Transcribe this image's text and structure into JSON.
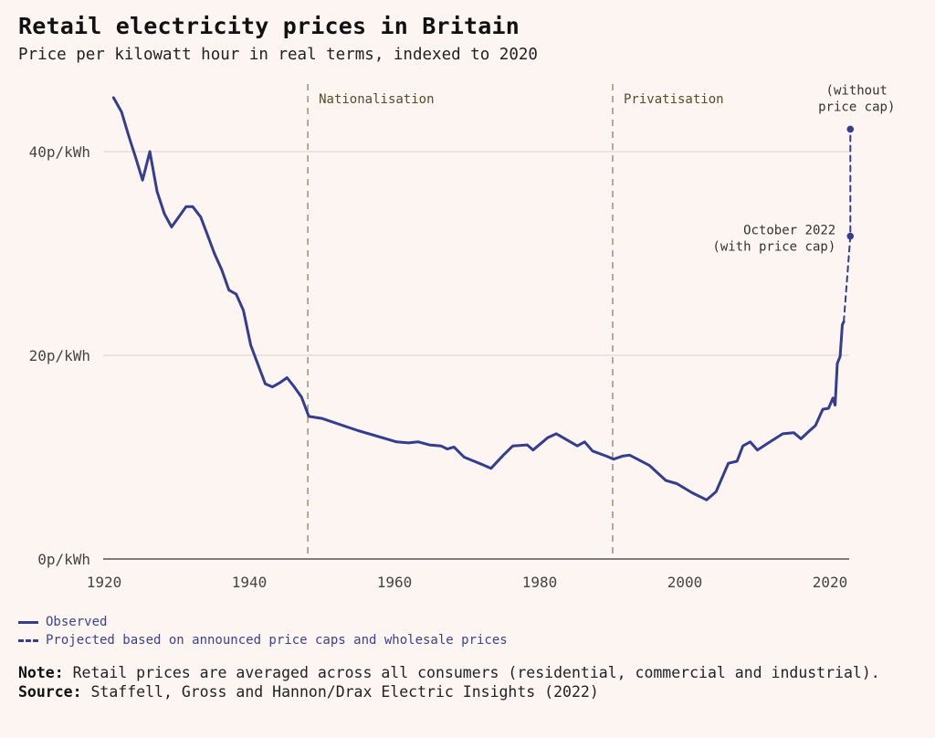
{
  "header": {
    "title": "Retail electricity prices in Britain",
    "subtitle": "Price per kilowatt hour in real terms, indexed to 2020"
  },
  "chart_data": {
    "type": "line",
    "title": "Retail electricity prices in Britain",
    "subtitle": "Price per kilowatt hour in real terms, indexed to 2020",
    "xlabel": "",
    "ylabel": "",
    "xlim": [
      1920,
      2023
    ],
    "ylim": [
      0,
      45
    ],
    "x_ticks": [
      1920,
      1940,
      1960,
      1980,
      2000,
      2020
    ],
    "x_tick_labels": [
      "1920",
      "1940",
      "1960",
      "1980",
      "2000",
      "2020"
    ],
    "y_ticks": [
      0,
      20,
      40
    ],
    "y_tick_labels": [
      "0p/kWh",
      "20p/kWh",
      "40p/kWh"
    ],
    "grid": "horizontal",
    "colors": {
      "line": "#343d8e",
      "event_line": "#8f7f62",
      "grid": "#e4dedb",
      "axis": "#555555",
      "background": "#fdf5f2"
    },
    "series": [
      {
        "name": "Observed",
        "style": "solid",
        "x": [
          1921.3,
          1922.4,
          1923.5,
          1924.4,
          1925.3,
          1926.3,
          1927.3,
          1928.3,
          1929.3,
          1930.3,
          1931.3,
          1932.2,
          1933.3,
          1934.2,
          1935.2,
          1936.2,
          1937.2,
          1938.2,
          1939.2,
          1940.2,
          1941.2,
          1942.2,
          1943.2,
          1944.2,
          1945.2,
          1946.2,
          1947.2,
          1948.2,
          1950.0,
          1955.0,
          1960.3,
          1961.9,
          1963.3,
          1964.8,
          1966.4,
          1967.3,
          1968.2,
          1969.6,
          1970.6,
          1972.0,
          1973.3,
          1975.0,
          1976.3,
          1978.3,
          1979.1,
          1981.1,
          1982.3,
          1985.2,
          1986.2,
          1987.3,
          1989.2,
          1990.2,
          1991.4,
          1992.4,
          1995.1,
          1997.4,
          1998.9,
          2001.0,
          2003.0,
          2004.3,
          2006.0,
          2007.2,
          2008.0,
          2009.0,
          2010.0,
          2011.3,
          2013.5,
          2015.0,
          2016.0,
          2017.2,
          2018.0,
          2019.0,
          2019.8,
          2020.4,
          2020.7,
          2021.0,
          2021.4,
          2021.7,
          2021.9
        ],
        "y": [
          45.3,
          43.9,
          41.3,
          39.3,
          37.2,
          40.0,
          36.1,
          33.9,
          32.6,
          33.6,
          34.6,
          34.6,
          33.6,
          31.9,
          30.0,
          28.4,
          26.4,
          26.0,
          24.4,
          21.0,
          19.1,
          17.2,
          16.9,
          17.3,
          17.8,
          16.9,
          15.9,
          14.0,
          13.8,
          12.6,
          11.5,
          11.4,
          11.5,
          11.2,
          11.1,
          10.8,
          11.0,
          10.0,
          9.7,
          9.3,
          8.9,
          10.2,
          11.1,
          11.2,
          10.7,
          11.9,
          12.3,
          11.1,
          11.5,
          10.6,
          10.1,
          9.8,
          10.1,
          10.2,
          9.2,
          7.7,
          7.4,
          6.5,
          5.8,
          6.6,
          9.4,
          9.6,
          11.1,
          11.5,
          10.7,
          11.3,
          12.3,
          12.4,
          11.8,
          12.6,
          13.1,
          14.7,
          14.8,
          15.8,
          15.1,
          19.2,
          19.9,
          23.0,
          23.3
        ]
      },
      {
        "name": "Projected based on announced price caps and wholesale prices",
        "style": "dashed",
        "x": [
          2021.9,
          2022.8,
          2022.8
        ],
        "y": [
          23.3,
          31.7,
          42.2
        ]
      }
    ],
    "points": [
      {
        "name": "with-cap",
        "x": 2022.8,
        "y": 31.7,
        "label": [
          "October 2022",
          "(with price cap)"
        ]
      },
      {
        "name": "without-cap",
        "x": 2022.8,
        "y": 42.2,
        "label": [
          "(without",
          "price cap)"
        ]
      }
    ],
    "events": [
      {
        "year": 1948,
        "label": "Nationalisation"
      },
      {
        "year": 1990,
        "label": "Privatisation"
      }
    ],
    "legend": {
      "placement": "bottom-left",
      "entries": [
        {
          "label": "Observed",
          "style": "solid"
        },
        {
          "label": "Projected based on announced price caps and wholesale prices",
          "style": "dashed"
        }
      ]
    }
  },
  "notes": {
    "note_label": "Note:",
    "note_text": " Retail prices are averaged across all consumers (residential, commercial and industrial).",
    "source_label": "Source:",
    "source_text": " Staffell, Gross and Hannon/Drax Electric Insights (2022)"
  }
}
